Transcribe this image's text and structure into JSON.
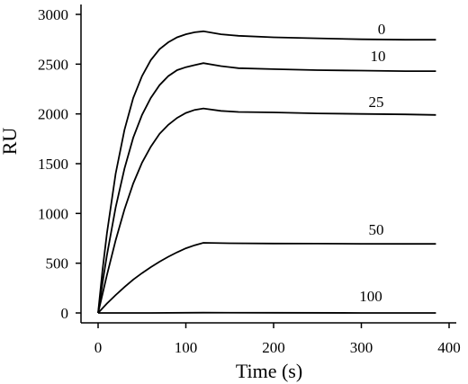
{
  "chart_data": {
    "type": "line",
    "xlabel": "Time (s)",
    "ylabel": "RU",
    "xlim": [
      -10,
      400
    ],
    "ylim": [
      -100,
      3000
    ],
    "x_ticks": [
      0,
      100,
      200,
      300,
      400
    ],
    "y_ticks": [
      0,
      500,
      1000,
      1500,
      2000,
      2500,
      3000
    ],
    "grid": false,
    "legend": "none",
    "series": [
      {
        "name": "0",
        "x": [
          0,
          5,
          10,
          20,
          30,
          40,
          50,
          60,
          70,
          80,
          90,
          100,
          110,
          120,
          140,
          160,
          200,
          250,
          300,
          350,
          385
        ],
        "y": [
          0,
          430,
          800,
          1400,
          1840,
          2160,
          2380,
          2540,
          2650,
          2720,
          2770,
          2800,
          2820,
          2830,
          2800,
          2785,
          2770,
          2760,
          2750,
          2745,
          2745
        ]
      },
      {
        "name": "10",
        "x": [
          0,
          5,
          10,
          20,
          30,
          40,
          50,
          60,
          70,
          80,
          90,
          100,
          110,
          120,
          140,
          160,
          200,
          250,
          300,
          350,
          385
        ],
        "y": [
          0,
          300,
          580,
          1060,
          1450,
          1760,
          1990,
          2160,
          2290,
          2380,
          2440,
          2470,
          2490,
          2510,
          2480,
          2460,
          2450,
          2440,
          2435,
          2430,
          2430
        ]
      },
      {
        "name": "25",
        "x": [
          0,
          5,
          10,
          20,
          30,
          40,
          50,
          60,
          70,
          80,
          90,
          100,
          110,
          120,
          140,
          160,
          200,
          250,
          300,
          350,
          385
        ],
        "y": [
          0,
          190,
          380,
          730,
          1040,
          1300,
          1510,
          1670,
          1800,
          1890,
          1960,
          2010,
          2040,
          2055,
          2030,
          2020,
          2015,
          2005,
          2000,
          1995,
          1990
        ]
      },
      {
        "name": "50",
        "x": [
          0,
          10,
          20,
          30,
          40,
          50,
          60,
          70,
          80,
          90,
          100,
          110,
          120,
          150,
          200,
          250,
          300,
          350,
          385
        ],
        "y": [
          0,
          95,
          180,
          260,
          335,
          400,
          460,
          515,
          565,
          610,
          650,
          680,
          705,
          700,
          698,
          697,
          695,
          694,
          694
        ]
      },
      {
        "name": "100",
        "x": [
          0,
          60,
          120,
          200,
          300,
          385
        ],
        "y": [
          0,
          0,
          3,
          2,
          0,
          0
        ]
      }
    ]
  }
}
